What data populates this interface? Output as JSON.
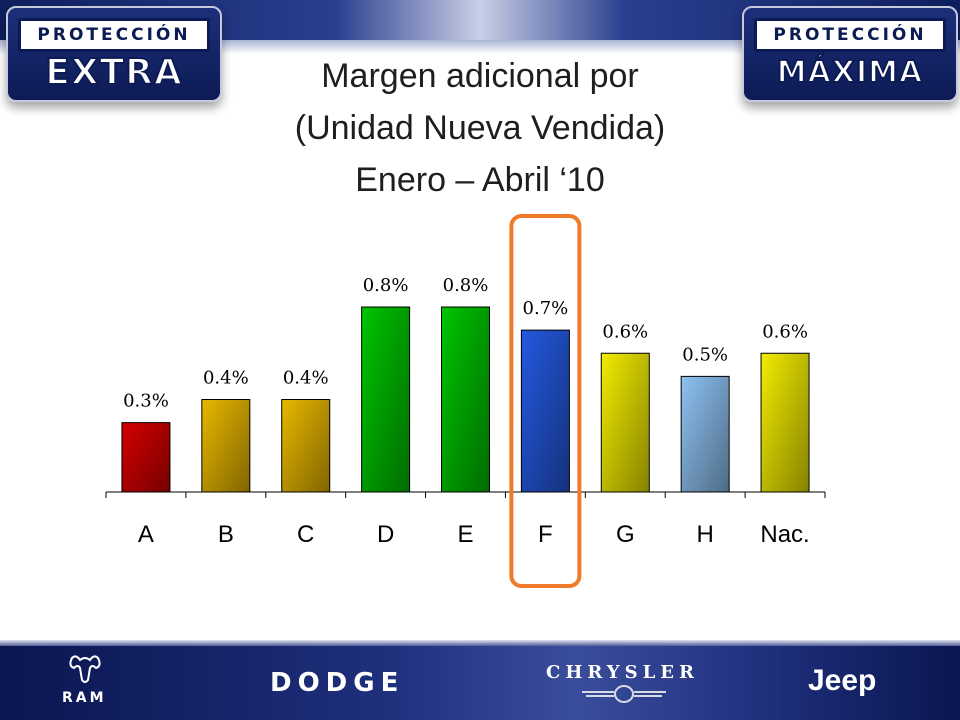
{
  "header": {
    "left_badge": {
      "top": "PROTECCIÓN",
      "main": "EXTRA"
    },
    "right_badge": {
      "top": "PROTECCIÓN",
      "main": "MÁXIMA"
    }
  },
  "title_lines": [
    "Margen adicional por",
    "(Unidad Nueva Vendida)",
    "Enero – Abril ‘10"
  ],
  "chart_data": {
    "type": "bar",
    "categories": [
      "A",
      "B",
      "C",
      "D",
      "E",
      "F",
      "G",
      "H",
      "Nac."
    ],
    "values": [
      0.3,
      0.4,
      0.4,
      0.8,
      0.8,
      0.7,
      0.6,
      0.5,
      0.6
    ],
    "data_labels": [
      "0.3%",
      "0.4%",
      "0.4%",
      "0.8%",
      "0.8%",
      "0.7%",
      "0.6%",
      "0.5%",
      "0.6%"
    ],
    "bar_colors": [
      "#d40000",
      "#e8b800",
      "#e8b800",
      "#00c400",
      "#00c400",
      "#2459e0",
      "#f2ec00",
      "#8ec2f2",
      "#f2ec00"
    ],
    "highlight_category": "F",
    "highlight_color": "#f07a2a",
    "ylim": [
      0,
      0.8
    ],
    "grid": false,
    "legend": "none"
  },
  "footer": {
    "logos": [
      "RAM",
      "DODGE",
      "CHRYSLER",
      "Jeep"
    ]
  }
}
